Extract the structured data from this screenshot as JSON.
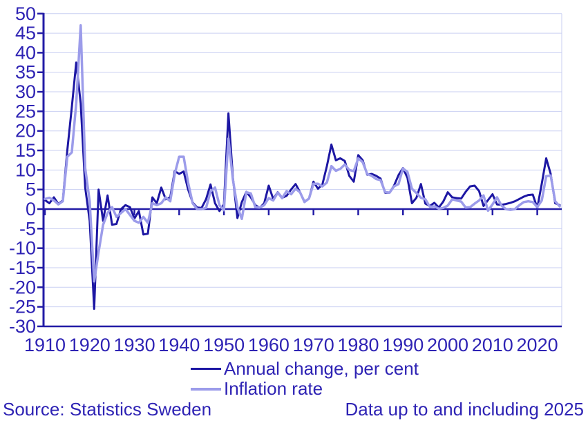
{
  "figure": {
    "source": "Source: Statistics Sweden",
    "note": "Data up to and including 2025"
  },
  "colors": {
    "annual_change_line": "#1d17a3",
    "inflation_line": "#9c9cea",
    "axis": "#221ba6",
    "grid": "#c9cff2",
    "text": "#2e23b4",
    "background": "#ffffff"
  },
  "legend": {
    "items": [
      {
        "label": "Annual change, per cent",
        "color": "#1d17a3"
      },
      {
        "label": "Inflation rate",
        "color": "#9c9cea"
      }
    ]
  },
  "chart_data": {
    "type": "line",
    "title": "",
    "xlabel": "",
    "ylabel": "",
    "years": {
      "start": 1910,
      "end": 2025
    },
    "xticks": [
      1910,
      1920,
      1930,
      1940,
      1950,
      1960,
      1970,
      1980,
      1990,
      2000,
      2010,
      2020
    ],
    "ylim": [
      -30,
      50
    ],
    "ytick_step": 5,
    "grid": true,
    "legend_position": "bottom",
    "series": [
      {
        "name": "Annual change, per cent",
        "color": "#1d17a3",
        "values": [
          2.3,
          1.5,
          3.0,
          1.3,
          2.2,
          15.0,
          26.0,
          37.5,
          27.0,
          5.5,
          -3.0,
          -25.5,
          5.0,
          -3.0,
          3.5,
          -4.0,
          -3.8,
          0.0,
          1.0,
          0.5,
          -2.4,
          -0.5,
          -6.5,
          -6.3,
          3.0,
          1.5,
          5.5,
          2.5,
          3.0,
          9.7,
          9.0,
          9.6,
          5.0,
          1.7,
          0.4,
          0.3,
          2.5,
          6.3,
          1.5,
          -0.5,
          1.2,
          24.5,
          8.0,
          -2.3,
          1.8,
          4.4,
          3.0,
          1.0,
          0.3,
          1.5,
          6.0,
          2.6,
          4.3,
          2.9,
          3.4,
          5.0,
          6.4,
          4.3,
          1.9,
          2.7,
          7.0,
          5.2,
          6.3,
          11.0,
          16.5,
          12.5,
          13.0,
          12.3,
          8.5,
          7.0,
          13.8,
          12.5,
          8.8,
          9.0,
          8.5,
          7.8,
          4.2,
          4.2,
          6.0,
          8.7,
          10.5,
          8.0,
          1.5,
          2.9,
          6.4,
          1.4,
          0.8,
          1.6,
          0.4,
          1.9,
          4.3,
          3.0,
          2.8,
          2.7,
          4.4,
          5.8,
          6.0,
          4.6,
          0.8,
          2.3,
          3.8,
          1.2,
          1.1,
          1.3,
          1.6,
          2.0,
          2.6,
          3.2,
          3.6,
          3.7,
          0.3,
          6.5,
          13.0,
          9.0,
          1.5,
          1.0
        ]
      },
      {
        "name": "Inflation rate",
        "color": "#9c9cea",
        "values": [
          2.6,
          2.9,
          2.2,
          1.2,
          2.0,
          13.4,
          14.5,
          27.0,
          47.0,
          10.5,
          2.0,
          -18.5,
          -11.0,
          -4.0,
          -1.0,
          0.5,
          -2.0,
          -1.0,
          0.0,
          -1.5,
          -3.0,
          -3.5,
          -2.0,
          -3.5,
          1.5,
          1.0,
          1.5,
          3.0,
          2.0,
          9.0,
          13.4,
          13.4,
          6.7,
          1.5,
          0.0,
          0.0,
          0.3,
          4.5,
          5.5,
          1.0,
          -0.3,
          18.0,
          7.5,
          0.5,
          -2.5,
          4.3,
          4.0,
          0.5,
          0.4,
          1.0,
          2.8,
          2.2,
          4.2,
          2.8,
          4.6,
          3.8,
          5.2,
          4.3,
          1.8,
          2.7,
          6.5,
          6.5,
          5.8,
          6.8,
          11.0,
          9.8,
          10.3,
          11.4,
          10.0,
          9.7,
          13.0,
          12.0,
          9.0,
          8.5,
          7.7,
          7.4,
          4.4,
          4.2,
          5.8,
          6.4,
          10.4,
          9.5,
          5.2,
          4.1,
          2.9,
          2.5,
          0.6,
          0.7,
          0.1,
          0.3,
          0.9,
          2.5,
          2.2,
          1.9,
          0.4,
          0.5,
          1.4,
          2.2,
          3.5,
          -0.4,
          1.2,
          3.0,
          0.9,
          0.0,
          -0.2,
          0.0,
          1.0,
          1.8,
          2.0,
          1.8,
          0.5,
          2.2,
          8.4,
          8.6,
          2.0,
          0.7
        ]
      }
    ]
  }
}
